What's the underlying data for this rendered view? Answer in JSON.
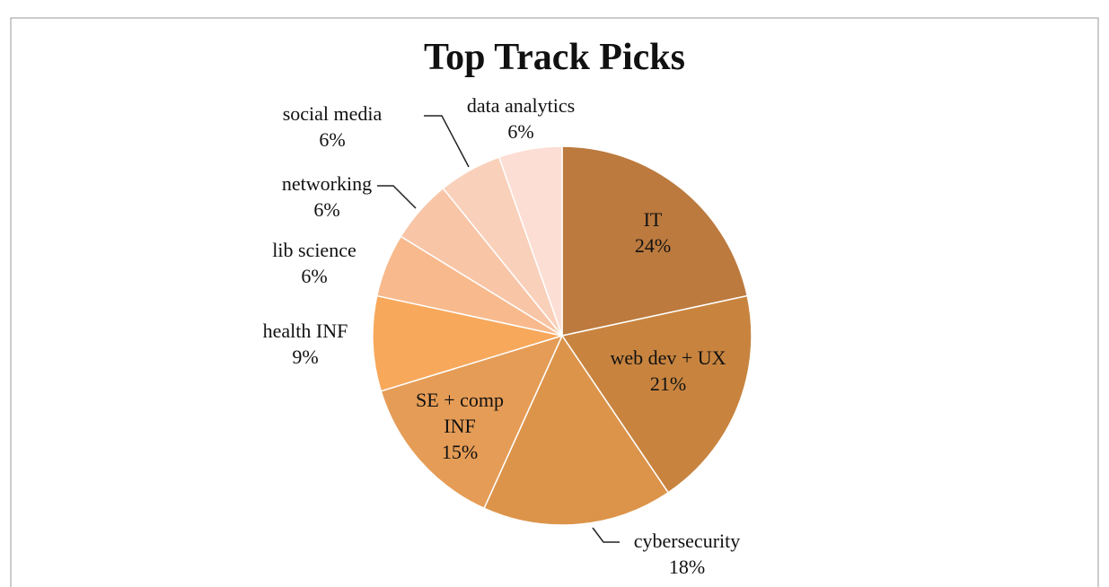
{
  "chart_data": {
    "type": "pie",
    "title": "Top Track Picks",
    "categories": [
      "IT",
      "web dev + UX",
      "cybersecurity",
      "SE + comp INF",
      "health INF",
      "lib science",
      "networking",
      "social media",
      "data analytics"
    ],
    "values": [
      24,
      21,
      18,
      15,
      9,
      6,
      6,
      6,
      6
    ],
    "value_labels": [
      "24%",
      "21%",
      "18%",
      "15%",
      "9%",
      "6%",
      "6%",
      "6%",
      "6%"
    ],
    "colors": [
      "#BC7A3E",
      "#C8843F",
      "#DC944A",
      "#E59C56",
      "#F7A85B",
      "#F8BA8C",
      "#F8C5A7",
      "#F9D0BA",
      "#FCDED4"
    ]
  }
}
